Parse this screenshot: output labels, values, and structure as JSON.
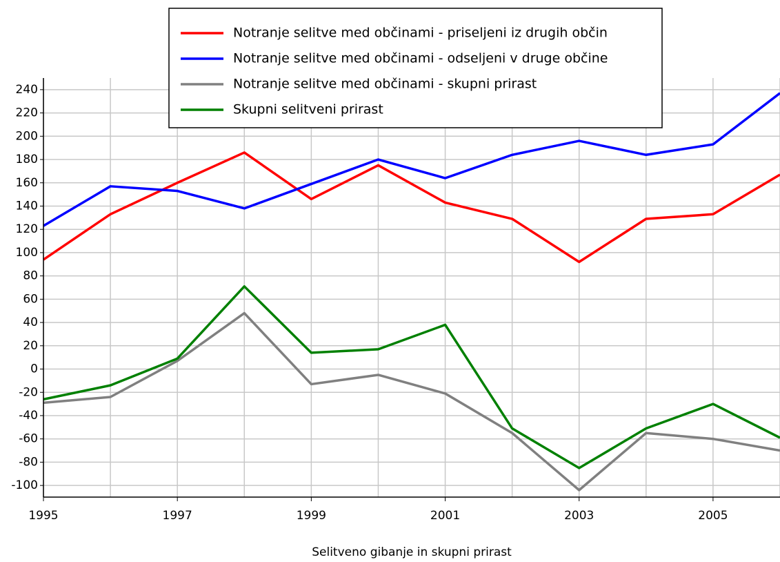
{
  "chart_data": {
    "type": "line",
    "x_label": "Selitveno gibanje in skupni prirast",
    "x": [
      1995,
      1996,
      1997,
      1998,
      1999,
      2000,
      2001,
      2002,
      2003,
      2004,
      2005,
      2006
    ],
    "series": [
      {
        "name": "Notranje selitve med občinami - priseljeni iz drugih občin",
        "color": "#ff0000",
        "values": [
          94,
          133,
          160,
          186,
          146,
          175,
          143,
          129,
          92,
          129,
          133,
          167
        ]
      },
      {
        "name": "Notranje selitve med občinami - odseljeni v druge občine",
        "color": "#0000ff",
        "values": [
          123,
          157,
          153,
          138,
          159,
          180,
          164,
          184,
          196,
          184,
          193,
          237
        ]
      },
      {
        "name": "Notranje selitve med občinami - skupni prirast",
        "color": "#808080",
        "values": [
          -29,
          -24,
          7,
          48,
          -13,
          -5,
          -21,
          -55,
          -104,
          -55,
          -60,
          -70
        ]
      },
      {
        "name": "Skupni selitveni prirast",
        "color": "#008000",
        "values": [
          -26,
          -14,
          9,
          71,
          14,
          17,
          38,
          -51,
          -85,
          -51,
          -30,
          -59
        ]
      }
    ],
    "xlim": [
      1995,
      2006
    ],
    "xticks": [
      1995,
      1997,
      1999,
      2001,
      2003,
      2005
    ],
    "x_minor_ticks": [
      1996,
      1998,
      2000,
      2002,
      2004,
      2006
    ],
    "ylim": [
      -110,
      250
    ],
    "yticks": [
      -100,
      -80,
      -60,
      -40,
      -20,
      0,
      20,
      40,
      60,
      80,
      100,
      120,
      140,
      160,
      180,
      200,
      220,
      240
    ],
    "grid": true,
    "legend": "top"
  }
}
